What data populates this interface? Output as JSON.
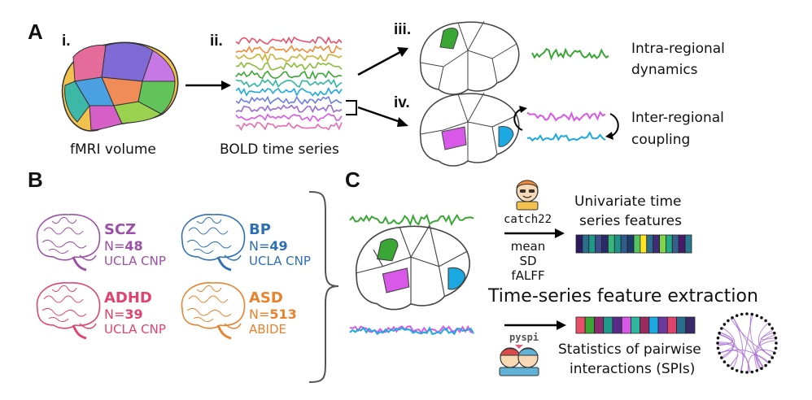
{
  "panels": {
    "a": "A",
    "b": "B",
    "c": "C"
  },
  "panel_a": {
    "step_i": "i.",
    "step_ii": "ii.",
    "step_iii": "iii.",
    "step_iv": "iv.",
    "fmri_label": "fMRI volume",
    "bold_label": "BOLD time series",
    "intra_line1": "Intra-regional",
    "intra_line2": "dynamics",
    "inter_line1": "Inter-regional",
    "inter_line2": "coupling"
  },
  "cohorts": [
    {
      "name": "SCZ",
      "n_prefix": "N=",
      "n": "48",
      "source": "UCLA CNP",
      "color": "#9b4fa6"
    },
    {
      "name": "BP",
      "n_prefix": "N=",
      "n": "49",
      "source": "UCLA CNP",
      "color": "#2f6fb6"
    },
    {
      "name": "ADHD",
      "n_prefix": "N=",
      "n": "39",
      "source": "UCLA CNP",
      "color": "#e0446e"
    },
    {
      "name": "ASD",
      "n_prefix": "N=",
      "n": "513",
      "source": "ABIDE",
      "color": "#e8822c"
    }
  ],
  "panel_c": {
    "catch22": "catch22",
    "univariate_line1": "Univariate time",
    "univariate_line2": "series features",
    "mean": "mean",
    "sd": "SD",
    "falff": "fALFF",
    "main_title": "Time-series feature extraction",
    "pyspi": "pyspi",
    "spi_line1": "Statistics of pairwise",
    "spi_line2": "interactions (SPIs)"
  },
  "icons": {
    "brain_surface": "brain-surface-icon",
    "cohort_brain": "brain-illustration-icon",
    "mascot_catch22": "catch22-mascot-icon",
    "mascot_pyspi": "pyspi-mascot-icon",
    "chord": "circular-network-icon"
  },
  "colors": {
    "green": "#3aa635",
    "magenta": "#d858e8",
    "cyan": "#1ca8e0"
  }
}
